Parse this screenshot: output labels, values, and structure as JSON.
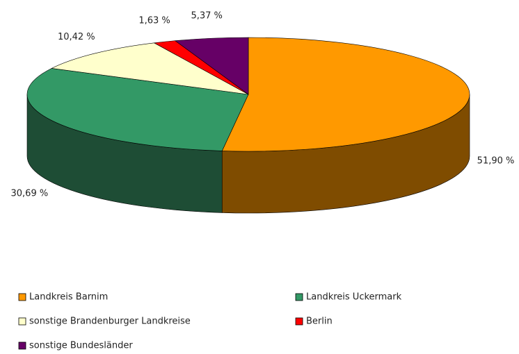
{
  "chart_data": {
    "type": "pie3d",
    "categories": [
      "Landkreis Barnim",
      "Landkreis Uckermark",
      "sonstige Brandenburger Landkreise",
      "Berlin",
      "sonstige Bundesländer"
    ],
    "values": [
      51.9,
      30.69,
      10.42,
      1.63,
      5.37
    ],
    "value_labels": [
      "51,90 %",
      "30,69 %",
      "10,42 %",
      "1,63 %",
      "5,37 %"
    ],
    "colors": [
      "#ff9900",
      "#339966",
      "#ffffcc",
      "#ff0000",
      "#660066"
    ],
    "side_colors": [
      "#7f4c00",
      "#1e4d35",
      "#80806a",
      "#800000",
      "#330033"
    ],
    "legend": "bottom"
  }
}
